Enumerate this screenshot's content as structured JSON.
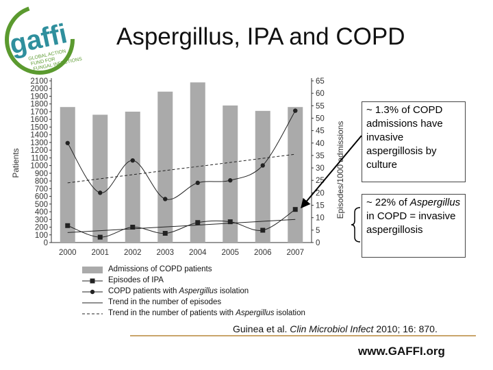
{
  "slide": {
    "title": "Aspergillus, IPA and COPD",
    "logo_text": "gaffi",
    "logo_subtext": [
      "GLOBAL ACTION",
      "FUND FOR",
      "FUNGAL INFECTIONS"
    ],
    "box1": "~ 1.3% of COPD admissions have invasive aspergillosis by culture",
    "box2_parts": [
      "~ 22% of ",
      "Aspergillus",
      " in COPD = invasive aspergillosis"
    ],
    "citation_parts": [
      "Guinea et al. ",
      "Clin Microbiol Infect",
      " 2010; 16: 870."
    ],
    "url": "www.GAFFI.org"
  },
  "colors": {
    "bar": "#aaaaaa",
    "line": "#222222",
    "accent_rule": "#c9a46a",
    "logo_green": "#5b9a2f",
    "logo_teal": "#2f8f9d"
  },
  "chart_data": {
    "type": "bar",
    "categories": [
      "2000",
      "2001",
      "2002",
      "2003",
      "2004",
      "2005",
      "2006",
      "2007"
    ],
    "ylabel": "Patients",
    "y2label": "Episodes/1000 admissions",
    "ylim": [
      0,
      2100
    ],
    "y2lim": [
      0,
      65
    ],
    "yticks": [
      0,
      100,
      200,
      300,
      400,
      500,
      600,
      700,
      800,
      900,
      1000,
      1100,
      1200,
      1300,
      1400,
      1500,
      1600,
      1700,
      1800,
      1900,
      2000,
      2100
    ],
    "y2ticks": [
      0,
      5,
      10,
      15,
      20,
      25,
      30,
      35,
      40,
      45,
      50,
      55,
      60,
      65
    ],
    "series": [
      {
        "name": "Admissions of COPD patients",
        "kind": "bar",
        "axis": "left",
        "values": [
          1760,
          1660,
          1700,
          1960,
          2080,
          1780,
          1710,
          1760
        ]
      },
      {
        "name": "Episodes of IPA",
        "kind": "line-square",
        "axis": "left",
        "values": [
          220,
          70,
          200,
          120,
          260,
          270,
          160,
          430
        ]
      },
      {
        "name": "COPD patients with Aspergillus isolation",
        "kind": "line-circle",
        "axis": "right",
        "values": [
          40,
          20,
          33,
          17.5,
          24,
          25,
          31,
          53
        ]
      },
      {
        "name": "Trend in the number of episodes",
        "kind": "trend-solid",
        "axis": "left",
        "values": [
          130,
          170,
          200,
          230,
          250,
          265,
          285,
          300
        ]
      },
      {
        "name": "Trend in the number of patients with Aspergillus isolation",
        "kind": "trend-dashed",
        "axis": "right",
        "values": [
          24,
          26,
          28,
          29.5,
          31,
          32.5,
          34,
          35.5
        ]
      }
    ],
    "legend": [
      {
        "parts": [
          "Admissions of COPD patients"
        ]
      },
      {
        "parts": [
          "Episodes of IPA"
        ]
      },
      {
        "parts": [
          "COPD patients with ",
          "Aspergillus",
          " isolation"
        ]
      },
      {
        "parts": [
          "Trend in the number of episodes"
        ]
      },
      {
        "parts": [
          "Trend in the number of patients with ",
          "Aspergillus",
          " isolation"
        ]
      }
    ]
  }
}
